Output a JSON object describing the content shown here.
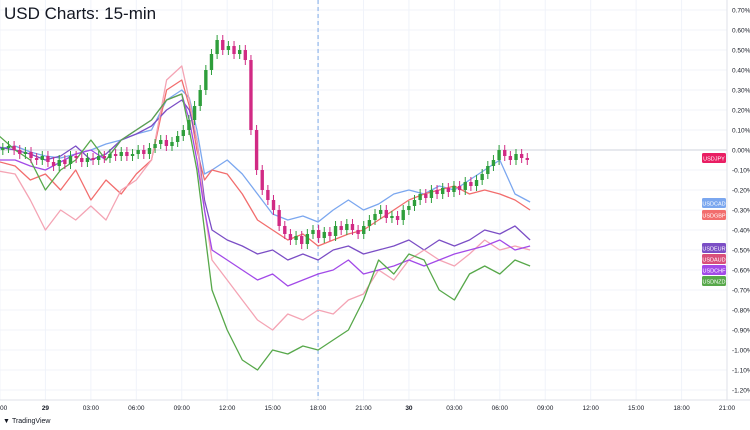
{
  "title": "USD Charts: 15-min",
  "watermark": "TradingView",
  "chart_data": {
    "type": "line",
    "ylim": [
      -1.25,
      0.75
    ],
    "y_ticks": [
      "0.70%",
      "0.60%",
      "0.50%",
      "0.40%",
      "0.30%",
      "0.20%",
      "0.10%",
      "0.00%",
      "-0.10%",
      "-0.20%",
      "-0.30%",
      "-0.40%",
      "-0.50%",
      "-0.60%",
      "-0.70%",
      "-0.80%",
      "-0.90%",
      "-1.00%",
      "-1.10%",
      "-1.20%"
    ],
    "y_tick_values": [
      0.7,
      0.6,
      0.5,
      0.4,
      0.3,
      0.2,
      0.1,
      0.0,
      -0.1,
      -0.2,
      -0.3,
      -0.4,
      -0.5,
      -0.6,
      -0.7,
      -0.8,
      -0.9,
      -1.0,
      -1.1,
      -1.2
    ],
    "x_ticks": [
      "00",
      "29",
      "03:00",
      "06:00",
      "09:00",
      "12:00",
      "15:00",
      "18:00",
      "21:00",
      "30",
      "03:00",
      "06:00",
      "09:00",
      "12:00",
      "15:00",
      "18:00",
      "21:00"
    ],
    "x_tick_bold": [
      false,
      true,
      false,
      false,
      false,
      false,
      false,
      false,
      false,
      true,
      false,
      false,
      false,
      false,
      false,
      false,
      false
    ],
    "series": [
      {
        "name": "USDCAD",
        "color": "#7ba7ef",
        "x": [
          -0.5,
          1,
          2,
          3,
          4,
          5,
          6,
          7,
          8,
          9,
          10,
          11,
          12,
          12.5,
          13,
          13.5,
          14,
          15,
          16,
          17,
          18,
          19,
          20,
          21,
          22,
          23,
          24,
          25,
          26,
          27,
          28,
          29,
          30,
          31,
          32,
          33,
          34,
          35
        ],
        "y": [
          0.0,
          0.02,
          -0.01,
          -0.03,
          -0.04,
          -0.02,
          0.0,
          0.03,
          0.05,
          0.08,
          0.1,
          0.25,
          0.3,
          0.26,
          0.1,
          -0.12,
          -0.1,
          -0.05,
          -0.12,
          -0.22,
          -0.32,
          -0.35,
          -0.33,
          -0.36,
          -0.3,
          -0.25,
          -0.3,
          -0.27,
          -0.22,
          -0.2,
          -0.22,
          -0.18,
          -0.2,
          -0.15,
          -0.1,
          -0.05,
          -0.22,
          -0.26
        ]
      },
      {
        "name": "USDGBP",
        "color": "#f26d6d",
        "x": [
          -0.5,
          1,
          2,
          3,
          4,
          5,
          6,
          7,
          8,
          9,
          10,
          11,
          12,
          12.5,
          13,
          13.5,
          14,
          15,
          16,
          17,
          18,
          19,
          20,
          21,
          22,
          23,
          24,
          25,
          26,
          27,
          28,
          29,
          30,
          31,
          32,
          33,
          34,
          35
        ],
        "y": [
          -0.05,
          -0.08,
          -0.15,
          -0.12,
          -0.2,
          -0.1,
          -0.25,
          -0.15,
          -0.22,
          -0.12,
          -0.05,
          0.3,
          0.35,
          0.22,
          0.0,
          -0.15,
          -0.1,
          -0.12,
          -0.22,
          -0.35,
          -0.4,
          -0.45,
          -0.42,
          -0.48,
          -0.45,
          -0.42,
          -0.4,
          -0.35,
          -0.3,
          -0.25,
          -0.22,
          -0.2,
          -0.18,
          -0.22,
          -0.2,
          -0.22,
          -0.25,
          -0.3
        ]
      },
      {
        "name": "USDEUR",
        "color": "#7b4ec5",
        "x": [
          -0.5,
          1,
          2,
          3,
          4,
          5,
          6,
          7,
          8,
          9,
          10,
          11,
          12,
          12.5,
          13,
          13.5,
          14,
          15,
          16,
          17,
          18,
          19,
          20,
          21,
          22,
          23,
          24,
          25,
          26,
          27,
          28,
          29,
          30,
          31,
          32,
          33,
          34,
          35
        ],
        "y": [
          0.02,
          0.0,
          -0.02,
          -0.05,
          -0.03,
          0.02,
          -0.05,
          -0.02,
          0.05,
          0.08,
          0.12,
          0.2,
          0.25,
          0.2,
          0.05,
          -0.25,
          -0.4,
          -0.45,
          -0.48,
          -0.52,
          -0.5,
          -0.55,
          -0.52,
          -0.55,
          -0.5,
          -0.48,
          -0.52,
          -0.5,
          -0.48,
          -0.45,
          -0.5,
          -0.45,
          -0.48,
          -0.45,
          -0.4,
          -0.42,
          -0.38,
          -0.45
        ]
      },
      {
        "name": "USDAUD",
        "color": "#f4a4b4",
        "x": [
          -0.5,
          1,
          2,
          3,
          4,
          5,
          6,
          7,
          8,
          9,
          10,
          11,
          12,
          12.5,
          13,
          13.5,
          14,
          15,
          16,
          17,
          18,
          19,
          20,
          21,
          22,
          23,
          24,
          25,
          26,
          27,
          28,
          29,
          30,
          31,
          32,
          33,
          34,
          35
        ],
        "y": [
          -0.1,
          -0.12,
          -0.25,
          -0.4,
          -0.3,
          -0.35,
          -0.28,
          -0.35,
          -0.2,
          -0.15,
          -0.05,
          0.35,
          0.42,
          0.25,
          0.05,
          -0.3,
          -0.55,
          -0.65,
          -0.75,
          -0.85,
          -0.9,
          -0.82,
          -0.85,
          -0.8,
          -0.82,
          -0.75,
          -0.72,
          -0.6,
          -0.65,
          -0.55,
          -0.5,
          -0.55,
          -0.58,
          -0.52,
          -0.45,
          -0.5,
          -0.48,
          -0.5
        ]
      },
      {
        "name": "USDCHF",
        "color": "#a24ae8",
        "x": [
          -0.5,
          1,
          2,
          3,
          4,
          5,
          6,
          7,
          8,
          9,
          10,
          11,
          12,
          12.5,
          13,
          13.5,
          14,
          15,
          16,
          17,
          18,
          19,
          20,
          21,
          22,
          23,
          24,
          25,
          26,
          27,
          28,
          29,
          30,
          31,
          32,
          33,
          34,
          35
        ],
        "y": [
          -0.05,
          -0.05,
          -0.08,
          -0.1,
          -0.06,
          -0.02,
          0.0,
          -0.05,
          0.05,
          0.1,
          0.15,
          0.25,
          0.28,
          0.15,
          -0.05,
          -0.3,
          -0.5,
          -0.55,
          -0.6,
          -0.65,
          -0.62,
          -0.68,
          -0.65,
          -0.62,
          -0.6,
          -0.55,
          -0.62,
          -0.6,
          -0.58,
          -0.55,
          -0.58,
          -0.55,
          -0.52,
          -0.5,
          -0.48,
          -0.45,
          -0.5,
          -0.48
        ]
      },
      {
        "name": "USDNZD",
        "color": "#57a84a",
        "x": [
          -0.5,
          1,
          2,
          3,
          4,
          5,
          6,
          7,
          8,
          9,
          10,
          11,
          12,
          12.5,
          13,
          13.5,
          14,
          15,
          16,
          17,
          18,
          19,
          20,
          21,
          22,
          23,
          24,
          25,
          26,
          27,
          28,
          29,
          30,
          31,
          32,
          33,
          34,
          35
        ],
        "y": [
          0.1,
          0.0,
          -0.05,
          -0.2,
          -0.1,
          -0.05,
          0.05,
          -0.05,
          0.05,
          0.1,
          0.15,
          0.25,
          0.28,
          0.1,
          -0.1,
          -0.4,
          -0.7,
          -0.9,
          -1.05,
          -1.1,
          -1.0,
          -1.02,
          -0.98,
          -1.0,
          -0.95,
          -0.9,
          -0.75,
          -0.55,
          -0.62,
          -0.52,
          -0.55,
          -0.7,
          -0.75,
          -0.62,
          -0.58,
          -0.62,
          -0.55,
          -0.58
        ]
      }
    ],
    "usdjpy": {
      "name": "USDJPY",
      "bull": "#2e9e3b",
      "bear": "#d12a84",
      "close": [
        0.01,
        0.02,
        0.0,
        -0.02,
        -0.01,
        -0.04,
        -0.05,
        -0.03,
        -0.06,
        -0.08,
        -0.05,
        -0.07,
        -0.03,
        -0.04,
        -0.06,
        -0.04,
        -0.05,
        -0.03,
        -0.04,
        -0.02,
        -0.03,
        -0.01,
        -0.03,
        -0.02,
        0.0,
        -0.02,
        0.01,
        0.03,
        0.05,
        0.02,
        0.04,
        0.07,
        0.1,
        0.15,
        0.22,
        0.3,
        0.4,
        0.48,
        0.55,
        0.5,
        0.52,
        0.48,
        0.5,
        0.45,
        0.1,
        -0.1,
        -0.2,
        -0.25,
        -0.3,
        -0.38,
        -0.42,
        -0.45,
        -0.43,
        -0.47,
        -0.42,
        -0.4,
        -0.44,
        -0.41,
        -0.43,
        -0.38,
        -0.4,
        -0.37,
        -0.4,
        -0.42,
        -0.38,
        -0.35,
        -0.32,
        -0.3,
        -0.34,
        -0.33,
        -0.35,
        -0.3,
        -0.28,
        -0.25,
        -0.22,
        -0.24,
        -0.2,
        -0.22,
        -0.19,
        -0.21,
        -0.18,
        -0.2,
        -0.16,
        -0.18,
        -0.15,
        -0.12,
        -0.08,
        -0.05,
        0.0,
        -0.03,
        -0.05,
        -0.02,
        -0.04,
        -0.05
      ]
    },
    "last_labels": [
      {
        "name": "USDJPY",
        "value": -0.04,
        "color": "#e91e63"
      },
      {
        "name": "USDCAD",
        "value": -0.265,
        "color": "#7ba7ef"
      },
      {
        "name": "USDGBP",
        "value": -0.325,
        "color": "#f26d6d"
      },
      {
        "name": "USDEUR",
        "value": -0.49,
        "color": "#7b4ec5"
      },
      {
        "name": "USDAUD",
        "value": -0.545,
        "color": "#d94f7a"
      },
      {
        "name": "USDCHF",
        "value": -0.6,
        "color": "#a24ae8"
      },
      {
        "name": "USDNZD",
        "value": -0.655,
        "color": "#57a84a"
      }
    ],
    "grid": true,
    "crosshair_x": 21
  }
}
